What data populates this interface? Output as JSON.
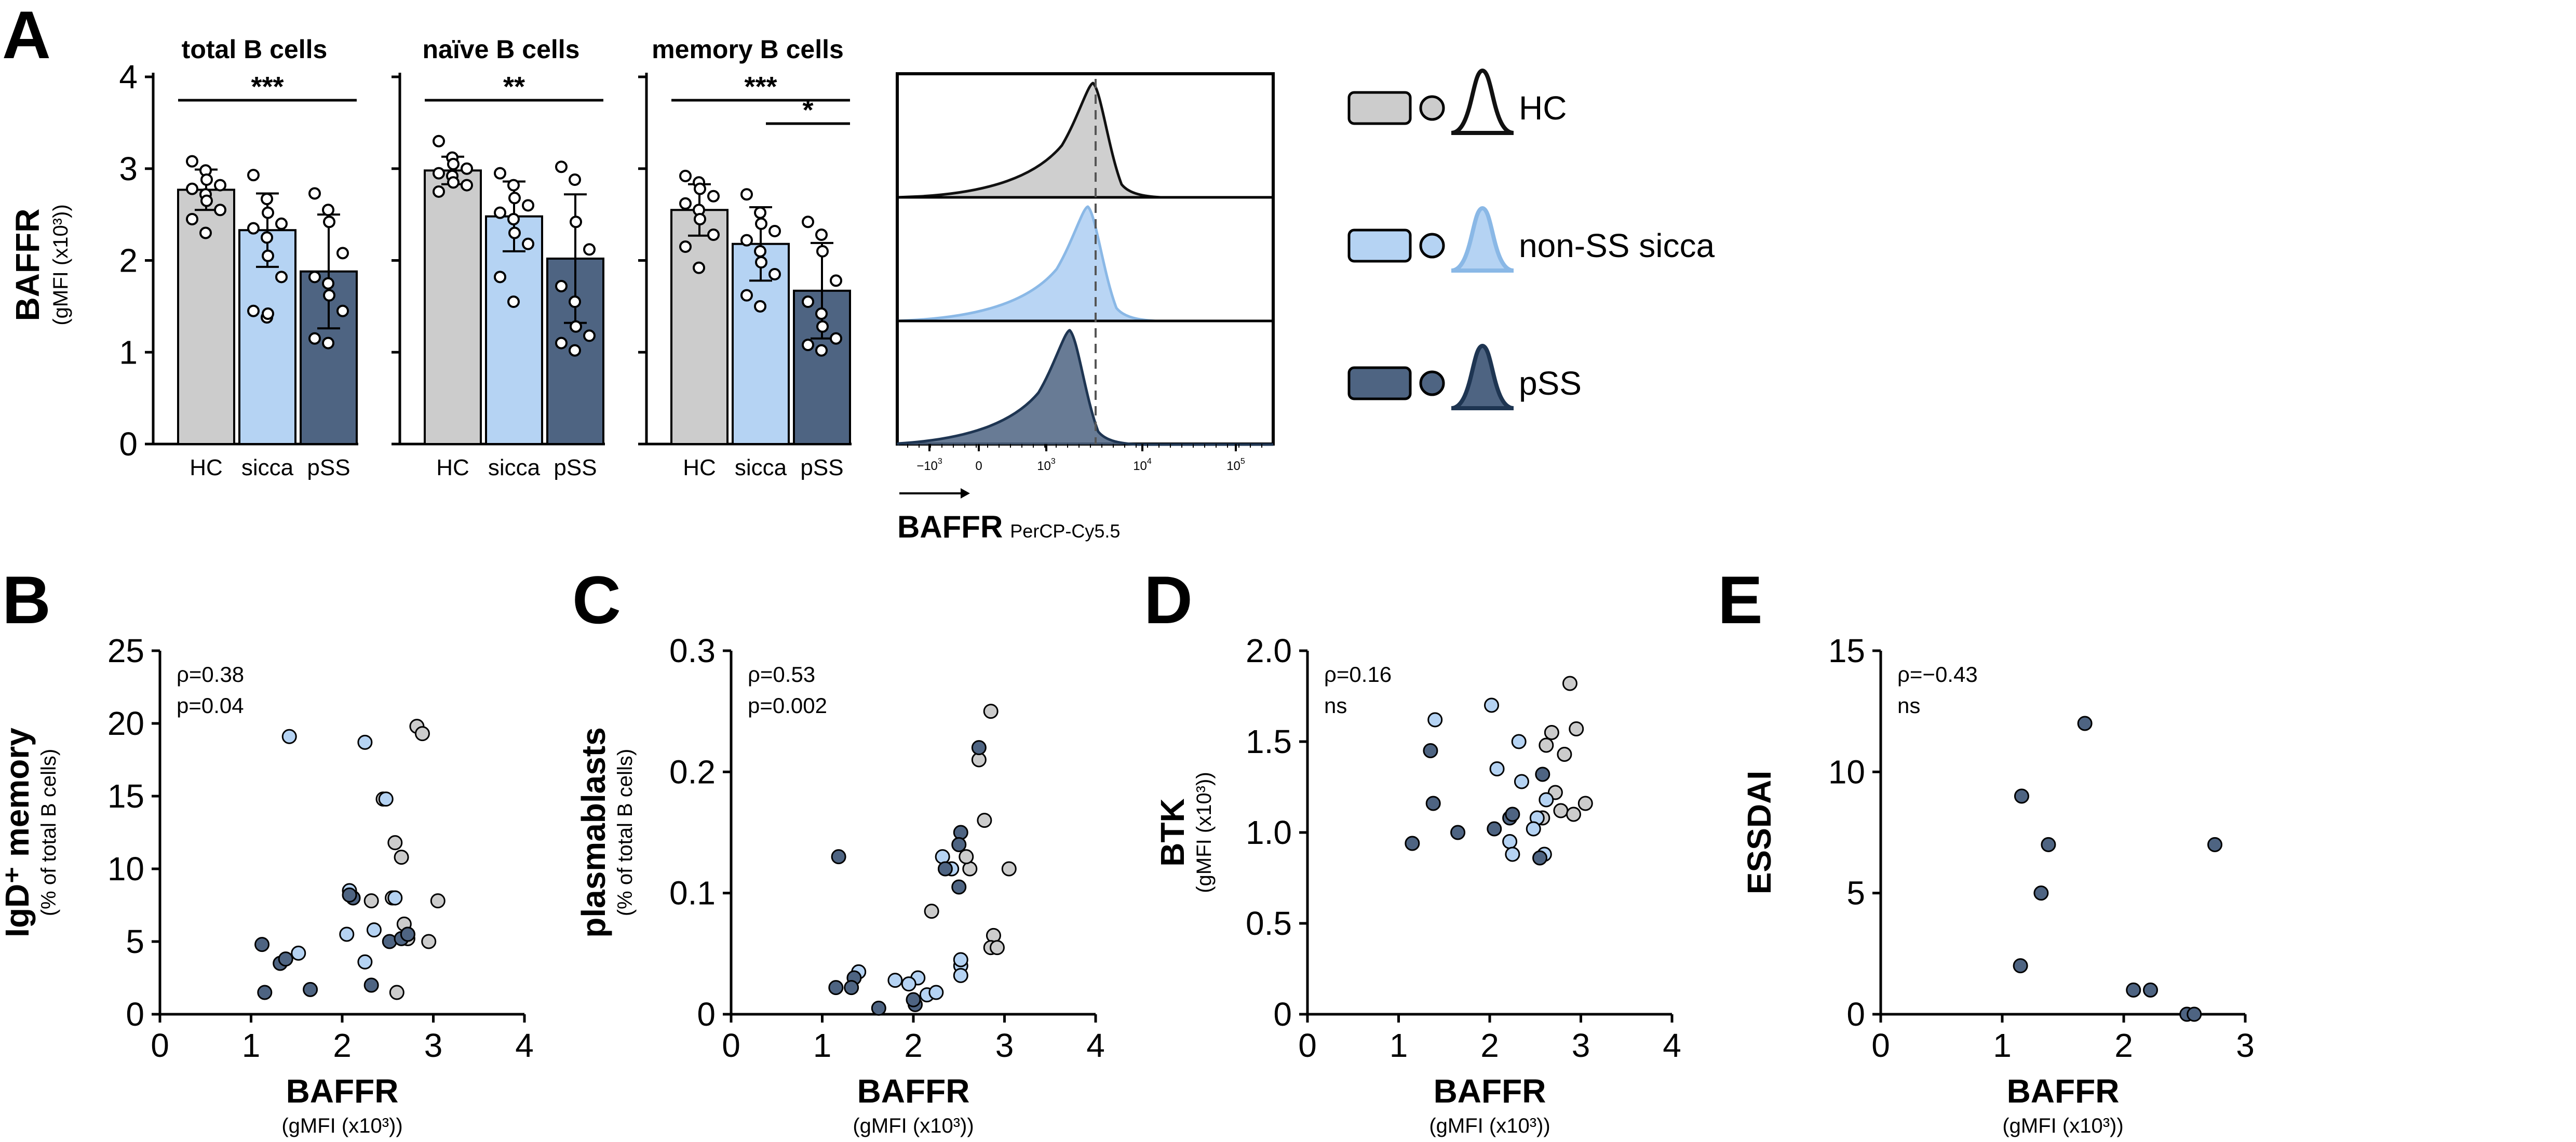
{
  "colors": {
    "hc": "#cccccc",
    "sicca": "#b5d3f3",
    "pss": "#4e6482",
    "hc_line": "#111111",
    "sicca_line": "#8ab8e6",
    "pss_line": "#1e3552"
  },
  "panel_letters": {
    "A": "A",
    "B": "B",
    "C": "C",
    "D": "D",
    "E": "E"
  },
  "panel_a": {
    "ylabel": "BAFFR",
    "ylabel_sub": "(gMFI (x10³))",
    "yticks": [
      "0",
      "1",
      "2",
      "3",
      "4"
    ],
    "ylim": [
      0,
      4
    ],
    "categories": [
      "HC",
      "sicca",
      "pSS"
    ],
    "subplots": [
      {
        "title": "total B cells",
        "means": [
          2.77,
          2.33,
          1.88
        ],
        "sd": [
          0.22,
          0.4,
          0.62
        ],
        "points": [
          [
            3.08,
            2.98,
            2.88,
            2.82,
            2.78,
            2.72,
            2.65,
            2.55,
            2.45,
            2.3
          ],
          [
            2.93,
            2.67,
            2.52,
            2.4,
            2.35,
            2.25,
            2.05,
            1.82,
            1.45,
            1.38,
            1.42
          ],
          [
            2.73,
            2.55,
            2.42,
            2.08,
            1.82,
            1.75,
            1.62,
            1.45,
            1.15,
            1.1
          ]
        ],
        "sig": [
          {
            "label": "***",
            "from": 0,
            "to": 2
          }
        ]
      },
      {
        "title": "naïve B cells",
        "means": [
          2.98,
          2.48,
          2.02
        ],
        "sd": [
          0.15,
          0.38,
          0.7
        ],
        "points": [
          [
            3.3,
            3.12,
            3.05,
            3.0,
            2.95,
            2.92,
            2.85,
            2.82,
            2.75
          ],
          [
            2.95,
            2.82,
            2.68,
            2.6,
            2.52,
            2.45,
            2.3,
            2.18,
            1.82,
            1.55
          ],
          [
            3.02,
            2.88,
            2.42,
            2.12,
            1.72,
            1.55,
            1.28,
            1.18,
            1.1,
            1.02
          ]
        ],
        "sig": [
          {
            "label": "**",
            "from": 0,
            "to": 2
          }
        ]
      },
      {
        "title": "memory B cells",
        "means": [
          2.55,
          2.18,
          1.67
        ],
        "sd": [
          0.28,
          0.4,
          0.52
        ],
        "points": [
          [
            2.92,
            2.85,
            2.78,
            2.7,
            2.62,
            2.55,
            2.45,
            2.28,
            2.15,
            1.92
          ],
          [
            2.72,
            2.52,
            2.4,
            2.32,
            2.22,
            2.1,
            1.98,
            1.85,
            1.62,
            1.5
          ],
          [
            2.42,
            2.28,
            2.1,
            1.78,
            1.55,
            1.42,
            1.28,
            1.15,
            1.08,
            1.02
          ]
        ],
        "sig": [
          {
            "label": "***",
            "from": 0,
            "to": 2
          },
          {
            "label": "*",
            "from": 1,
            "to": 2
          }
        ]
      }
    ]
  },
  "histogram": {
    "xlabel": "BAFFR",
    "xlabel_sub": "PerCP-Cy5.5",
    "xtick_bases": [
      "−10",
      "0",
      "10",
      "10",
      "10"
    ],
    "xtick_exps": [
      "3",
      "",
      "3",
      "4",
      "5"
    ]
  },
  "legend": [
    {
      "key": "hc",
      "label": "HC"
    },
    {
      "key": "sicca",
      "label": "non-SS sicca"
    },
    {
      "key": "pss",
      "label": "pSS"
    }
  ],
  "chart_data": [
    {
      "type": "bar",
      "panel": "A",
      "title": "total B cells",
      "ylabel": "BAFFR (gMFI (x10³))",
      "ylim": [
        0,
        4
      ],
      "categories": [
        "HC",
        "sicca",
        "pSS"
      ],
      "values": [
        2.77,
        2.33,
        1.88
      ],
      "sd": [
        0.22,
        0.4,
        0.62
      ],
      "annotations": [
        "***"
      ]
    },
    {
      "type": "bar",
      "panel": "A",
      "title": "naïve B cells",
      "ylabel": "BAFFR (gMFI (x10³))",
      "ylim": [
        0,
        4
      ],
      "categories": [
        "HC",
        "sicca",
        "pSS"
      ],
      "values": [
        2.98,
        2.48,
        2.02
      ],
      "sd": [
        0.15,
        0.38,
        0.7
      ],
      "annotations": [
        "**"
      ]
    },
    {
      "type": "bar",
      "panel": "A",
      "title": "memory B cells",
      "ylabel": "BAFFR (gMFI (x10³))",
      "ylim": [
        0,
        4
      ],
      "categories": [
        "HC",
        "sicca",
        "pSS"
      ],
      "values": [
        2.55,
        2.18,
        1.67
      ],
      "sd": [
        0.28,
        0.4,
        0.52
      ],
      "annotations": [
        "***",
        "*"
      ]
    },
    {
      "type": "scatter",
      "panel": "B",
      "xlabel": "BAFFR",
      "xlabel_sub": "(gMFI (x10³))",
      "ylabel": "IgD⁺ memory",
      "ylabel_sub": "(% of total B cells)",
      "xlim": [
        0,
        4
      ],
      "ylim": [
        0,
        25
      ],
      "xticks": [
        "0",
        "1",
        "2",
        "3",
        "4"
      ],
      "yticks": [
        "0",
        "5",
        "10",
        "15",
        "20",
        "25"
      ],
      "stats": [
        "ρ=0.38",
        "p=0.04"
      ],
      "series": [
        {
          "name": "HC",
          "x": [
            2.82,
            2.88,
            2.45,
            2.58,
            2.65,
            2.32,
            2.55,
            2.68,
            2.72,
            2.95,
            3.05,
            2.6
          ],
          "y": [
            19.8,
            19.3,
            14.8,
            11.8,
            10.8,
            7.8,
            8.0,
            6.2,
            5.2,
            5.0,
            7.8,
            1.5
          ]
        },
        {
          "name": "non-SS sicca",
          "x": [
            1.42,
            2.25,
            2.48,
            2.08,
            2.58,
            2.72,
            2.35,
            2.05,
            1.52,
            2.25
          ],
          "y": [
            19.1,
            18.7,
            14.8,
            8.5,
            8.0,
            5.5,
            5.8,
            5.5,
            4.2,
            3.6
          ]
        },
        {
          "name": "pSS",
          "x": [
            1.12,
            1.15,
            1.32,
            1.38,
            1.65,
            2.12,
            2.52,
            2.65,
            2.72,
            2.08,
            2.32
          ],
          "y": [
            4.8,
            1.5,
            3.5,
            3.8,
            1.7,
            8.0,
            5.0,
            5.2,
            5.5,
            8.2,
            2.0
          ]
        }
      ]
    },
    {
      "type": "scatter",
      "panel": "C",
      "xlabel": "BAFFR",
      "xlabel_sub": "(gMFI (x10³))",
      "ylabel": "plasmablasts",
      "ylabel_sub": "(% of total B cells)",
      "xlim": [
        0,
        4
      ],
      "ylim": [
        0,
        0.3
      ],
      "xticks": [
        "0",
        "1",
        "2",
        "3",
        "4"
      ],
      "yticks": [
        "0",
        "0.1",
        "0.2",
        "0.3"
      ],
      "stats": [
        "ρ=0.53",
        "p=0.002"
      ],
      "series": [
        {
          "name": "HC",
          "x": [
            2.85,
            2.72,
            2.78,
            2.62,
            2.88,
            3.05,
            2.2,
            2.85,
            2.92,
            2.58
          ],
          "y": [
            0.25,
            0.21,
            0.16,
            0.12,
            0.065,
            0.12,
            0.085,
            0.055,
            0.055,
            0.13
          ]
        },
        {
          "name": "non-SS sicca",
          "x": [
            2.32,
            2.42,
            2.52,
            2.52,
            2.05,
            2.15,
            1.95,
            1.4,
            2.25,
            2.52,
            1.8
          ],
          "y": [
            0.13,
            0.12,
            0.04,
            0.032,
            0.03,
            0.016,
            0.025,
            0.035,
            0.018,
            0.045,
            0.028
          ]
        },
        {
          "name": "pSS",
          "x": [
            1.18,
            1.15,
            1.35,
            1.32,
            1.62,
            2.02,
            2.0,
            2.52,
            2.5,
            2.72,
            2.35,
            2.5
          ],
          "y": [
            0.13,
            0.022,
            0.03,
            0.022,
            0.005,
            0.008,
            0.012,
            0.15,
            0.14,
            0.22,
            0.12,
            0.105
          ]
        }
      ]
    },
    {
      "type": "scatter",
      "panel": "D",
      "xlabel": "BAFFR",
      "xlabel_sub": "(gMFI (x10³))",
      "ylabel": "BTK",
      "ylabel_sub": "(gMFI (x10³))",
      "xlim": [
        0,
        4
      ],
      "ylim": [
        0,
        2.0
      ],
      "xticks": [
        "0",
        "1",
        "2",
        "3",
        "4"
      ],
      "yticks": [
        "0",
        "0.5",
        "1.0",
        "1.5",
        "2.0"
      ],
      "stats": [
        "ρ=0.16",
        "ns"
      ],
      "series": [
        {
          "name": "HC",
          "x": [
            2.88,
            2.68,
            2.95,
            2.82,
            2.62,
            3.05,
            2.72,
            2.78,
            2.92,
            2.58
          ],
          "y": [
            1.82,
            1.55,
            1.57,
            1.43,
            1.48,
            1.16,
            1.22,
            1.12,
            1.1,
            1.08
          ]
        },
        {
          "name": "non-SS sicca",
          "x": [
            1.4,
            2.02,
            2.32,
            2.08,
            2.35,
            2.62,
            2.52,
            2.48,
            2.22,
            2.6,
            2.25
          ],
          "y": [
            1.62,
            1.7,
            1.5,
            1.35,
            1.28,
            1.18,
            1.08,
            1.02,
            0.95,
            0.88,
            0.88
          ]
        },
        {
          "name": "pSS",
          "x": [
            1.15,
            1.35,
            1.38,
            1.65,
            2.05,
            2.22,
            2.58,
            2.55,
            2.25
          ],
          "y": [
            0.94,
            1.45,
            1.16,
            1.0,
            1.02,
            1.08,
            1.32,
            0.86,
            1.1
          ]
        }
      ]
    },
    {
      "type": "scatter",
      "panel": "E",
      "xlabel": "BAFFR",
      "xlabel_sub": "(gMFI (x10³))",
      "ylabel": "ESSDAI",
      "xlim": [
        0,
        3
      ],
      "ylim": [
        0,
        15
      ],
      "xticks": [
        "0",
        "1",
        "2",
        "3"
      ],
      "yticks": [
        "0",
        "5",
        "10",
        "15"
      ],
      "stats": [
        "ρ=−0.43",
        "ns"
      ],
      "series": [
        {
          "name": "pSS",
          "x": [
            1.16,
            1.15,
            1.32,
            1.38,
            1.68,
            2.08,
            2.22,
            2.52,
            2.58,
            2.75
          ],
          "y": [
            9,
            2,
            5,
            7,
            12,
            1,
            1,
            0,
            0,
            7
          ]
        }
      ]
    }
  ]
}
